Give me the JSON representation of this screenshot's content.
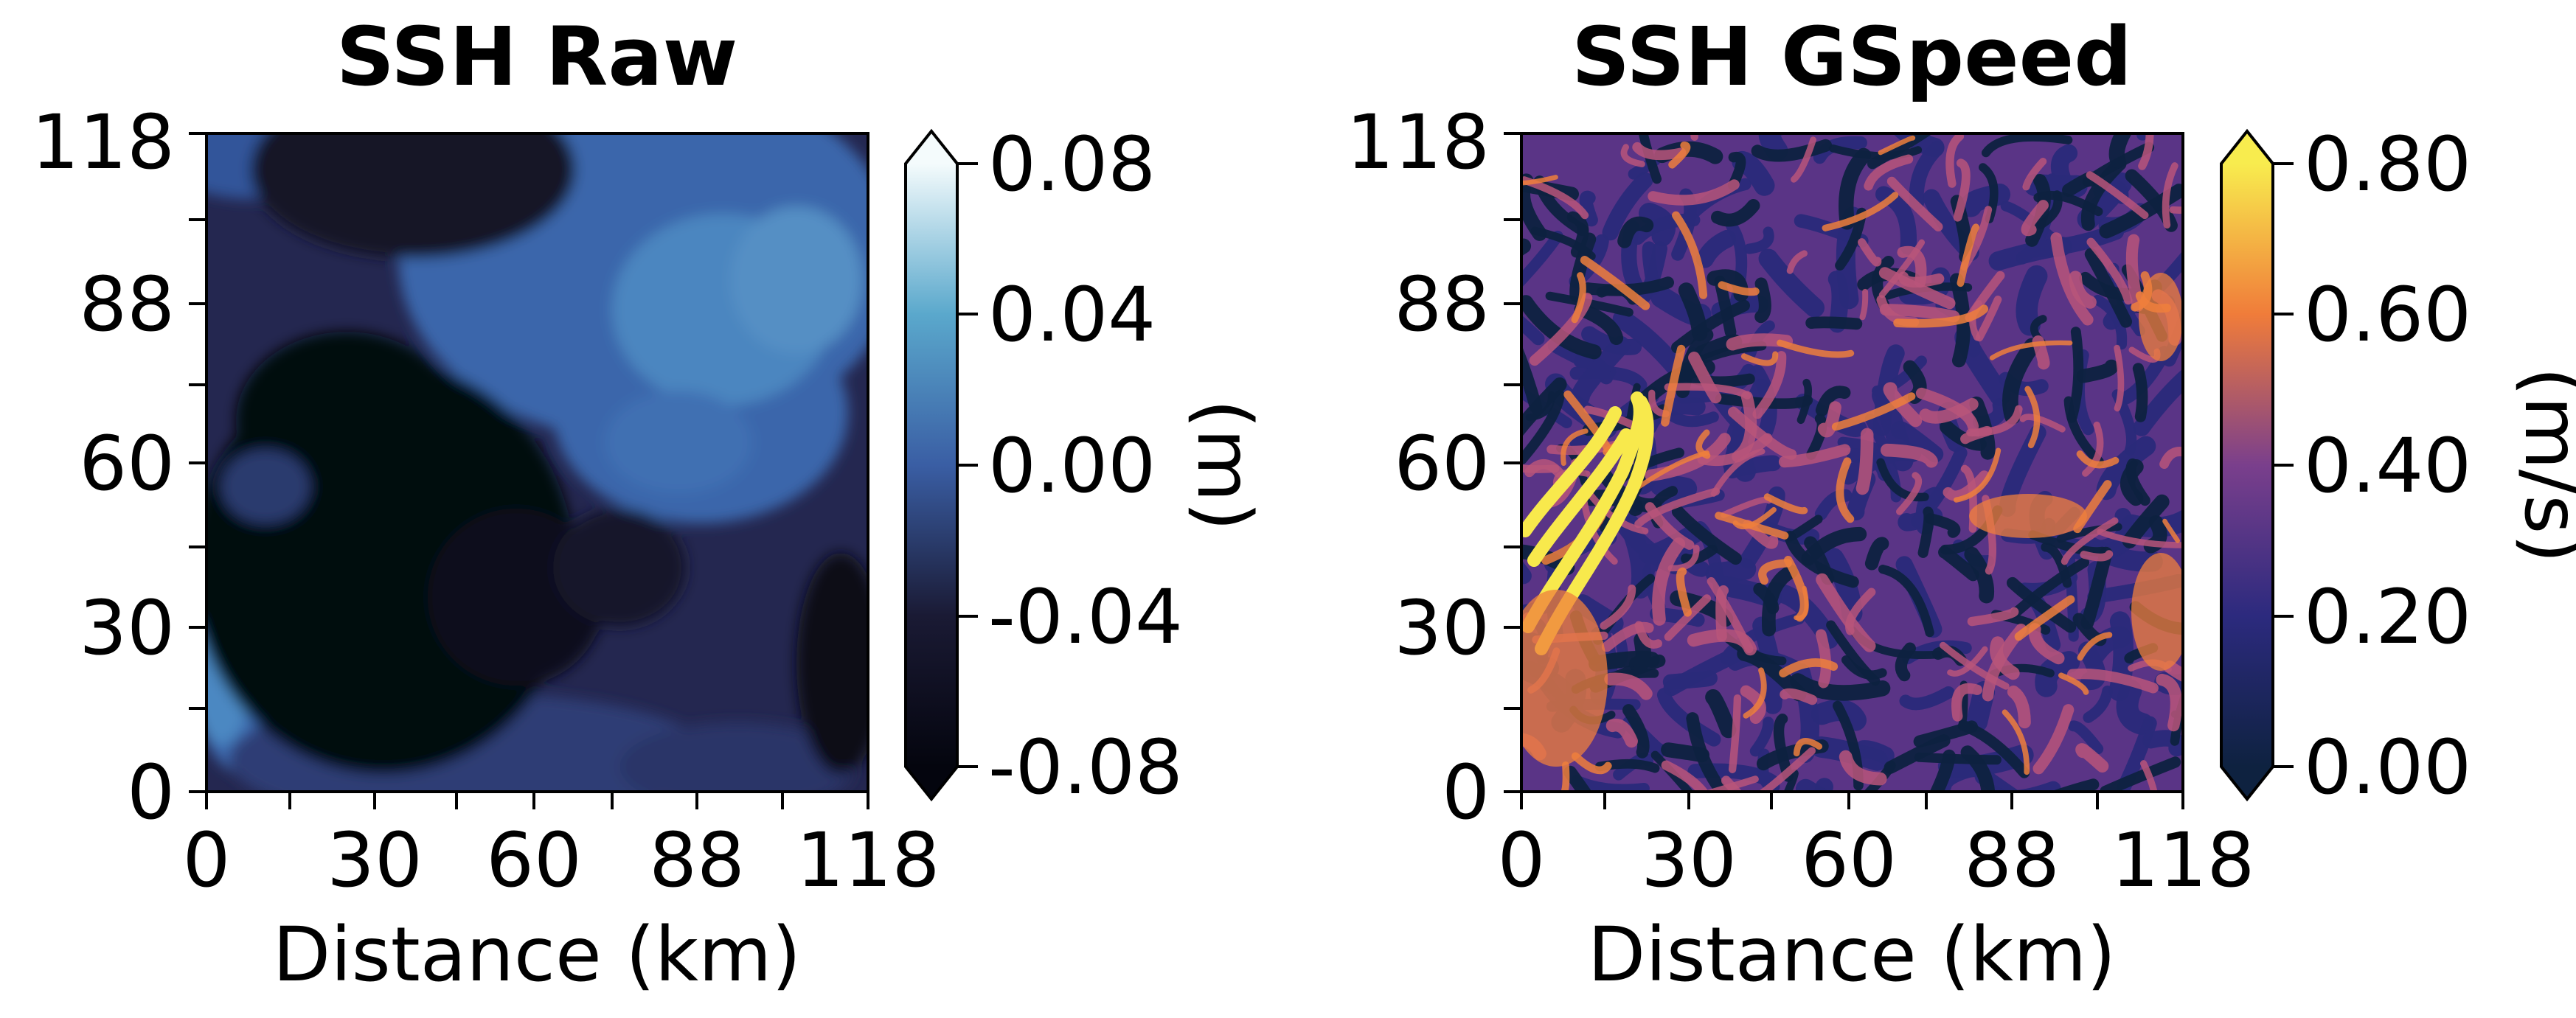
{
  "colors": {
    "raw_cmap": [
      "#04050e",
      "#161628",
      "#2a2f5c",
      "#3a62a8",
      "#57a4cc",
      "#f4fbfc"
    ],
    "gspeed_cmap": [
      "#0e2240",
      "#2a2a7a",
      "#6b3c8a",
      "#b9557a",
      "#ef7f3c",
      "#f8e94c"
    ]
  },
  "chart_data": [
    {
      "type": "heatmap",
      "title": "SSH Raw",
      "xlabel": "Distance (km)",
      "ylabel": "",
      "xticks": [
        "0",
        "30",
        "60",
        "88",
        "118"
      ],
      "yticks": [
        "0",
        "30",
        "60",
        "88",
        "118"
      ],
      "xlim": [
        0,
        118
      ],
      "ylim": [
        0,
        118
      ],
      "colorbar": {
        "label": "(m)",
        "ticks": [
          "-0.08",
          "-0.04",
          "0.00",
          "0.04",
          "0.08"
        ],
        "range": [
          -0.08,
          0.08
        ],
        "extend": "both"
      },
      "field_description": "sea surface height: deep low (about -0.08 m) centered near (30 km, 40 km); higher values (about 0.00 to 0.02 m) along the upper-right region"
    },
    {
      "type": "heatmap",
      "title": "SSH GSpeed",
      "xlabel": "Distance (km)",
      "ylabel": "",
      "xticks": [
        "0",
        "30",
        "60",
        "88",
        "118"
      ],
      "yticks": [
        "0",
        "30",
        "60",
        "88",
        "118"
      ],
      "xlim": [
        0,
        118
      ],
      "ylim": [
        0,
        118
      ],
      "colorbar": {
        "label": "(m/s)",
        "ticks": [
          "0.00",
          "0.20",
          "0.40",
          "0.60",
          "0.80"
        ],
        "range": [
          0.0,
          0.8
        ],
        "extend": "both"
      },
      "field_description": "geostrophic speed from SSH: filamentary structure, strong jet (about 0.8 m/s) near the left edge at y 30 to 65 km"
    }
  ]
}
